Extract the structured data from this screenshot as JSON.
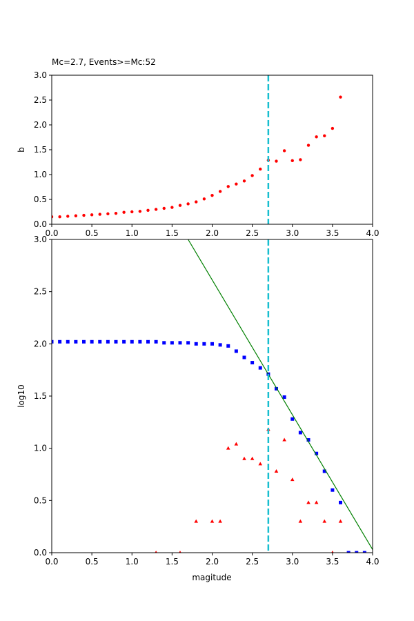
{
  "chart_data": [
    {
      "type": "scatter",
      "title": "Mc=2.7, Events>=Mc:52",
      "xlabel": "",
      "ylabel": "b",
      "xlim": [
        0,
        4.0
      ],
      "ylim": [
        0,
        3.0
      ],
      "xticks": [
        "0.0",
        "0.5",
        "1.0",
        "1.5",
        "2.0",
        "2.5",
        "3.0",
        "3.5",
        "4.0"
      ],
      "yticks": [
        "0.0",
        "0.5",
        "1.0",
        "1.5",
        "2.0",
        "2.5",
        "3.0"
      ],
      "vline": {
        "x": 2.7,
        "color": "#17becf",
        "style": "dashed"
      },
      "series": [
        {
          "marker": "circle",
          "color": "#ff0000",
          "x": [
            0.0,
            0.1,
            0.2,
            0.3,
            0.4,
            0.5,
            0.6,
            0.7,
            0.8,
            0.9,
            1.0,
            1.1,
            1.2,
            1.3,
            1.4,
            1.5,
            1.6,
            1.7,
            1.8,
            1.9,
            2.0,
            2.1,
            2.2,
            2.3,
            2.4,
            2.5,
            2.6,
            2.7,
            2.8,
            2.9,
            3.0,
            3.1,
            3.2,
            3.3,
            3.4,
            3.5,
            3.6
          ],
          "y": [
            0.15,
            0.15,
            0.16,
            0.17,
            0.18,
            0.19,
            0.2,
            0.21,
            0.22,
            0.24,
            0.25,
            0.26,
            0.28,
            0.3,
            0.32,
            0.34,
            0.38,
            0.41,
            0.45,
            0.51,
            0.58,
            0.66,
            0.76,
            0.81,
            0.87,
            0.98,
            1.11,
            1.29,
            1.27,
            1.48,
            1.28,
            1.3,
            1.59,
            1.76,
            1.78,
            1.93,
            2.56
          ]
        }
      ]
    },
    {
      "type": "scatter",
      "title": "",
      "xlabel": "magitude",
      "ylabel": "log10",
      "xlim": [
        0,
        4.0
      ],
      "ylim": [
        0,
        3.0
      ],
      "xticks": [
        "0.0",
        "0.5",
        "1.0",
        "1.5",
        "2.0",
        "2.5",
        "3.0",
        "3.5",
        "4.0"
      ],
      "yticks": [
        "0.0",
        "0.5",
        "1.0",
        "1.5",
        "2.0",
        "2.5",
        "3.0"
      ],
      "vline": {
        "x": 2.7,
        "color": "#17becf",
        "style": "dashed"
      },
      "fit_line": {
        "color": "#008000",
        "points": [
          [
            1.7,
            3.0
          ],
          [
            4.0,
            0.03
          ]
        ]
      },
      "series": [
        {
          "marker": "square",
          "color": "#0000ff",
          "x": [
            0.0,
            0.1,
            0.2,
            0.3,
            0.4,
            0.5,
            0.6,
            0.7,
            0.8,
            0.9,
            1.0,
            1.1,
            1.2,
            1.3,
            1.4,
            1.5,
            1.6,
            1.7,
            1.8,
            1.9,
            2.0,
            2.1,
            2.2,
            2.3,
            2.4,
            2.5,
            2.6,
            2.7,
            2.8,
            2.9,
            3.0,
            3.1,
            3.2,
            3.3,
            3.4,
            3.5,
            3.6,
            3.7,
            3.8,
            3.9
          ],
          "y": [
            2.02,
            2.02,
            2.02,
            2.02,
            2.02,
            2.02,
            2.02,
            2.02,
            2.02,
            2.02,
            2.02,
            2.02,
            2.02,
            2.02,
            2.01,
            2.01,
            2.01,
            2.01,
            2.0,
            2.0,
            2.0,
            1.99,
            1.98,
            1.93,
            1.87,
            1.82,
            1.77,
            1.71,
            1.57,
            1.49,
            1.28,
            1.15,
            1.08,
            0.95,
            0.78,
            0.6,
            0.48,
            0.0,
            0.0,
            0.0
          ]
        },
        {
          "marker": "triangle",
          "color": "#ff0000",
          "x": [
            1.3,
            1.6,
            1.8,
            2.0,
            2.1,
            2.2,
            2.3,
            2.4,
            2.5,
            2.6,
            2.7,
            2.8,
            2.9,
            3.0,
            3.1,
            3.2,
            3.3,
            3.4,
            3.5,
            3.6
          ],
          "y": [
            0.0,
            0.0,
            0.3,
            0.3,
            0.3,
            1.0,
            1.04,
            0.9,
            0.9,
            0.85,
            1.18,
            0.78,
            1.08,
            0.7,
            0.3,
            0.48,
            0.48,
            0.3,
            0.0,
            0.3
          ]
        }
      ]
    }
  ]
}
